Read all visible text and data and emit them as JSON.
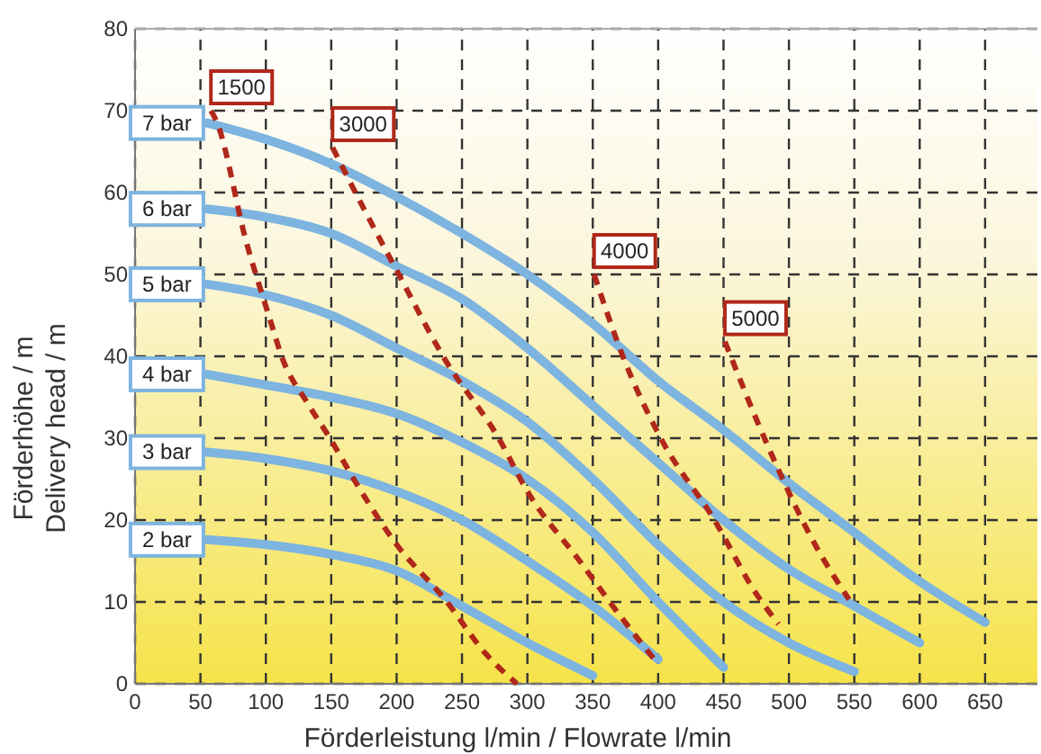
{
  "chart_data": {
    "type": "line",
    "xlabel": "Förderleistung l/min / Flowrate l/min",
    "ylabel": "Förderhöhe / m\nDelivery head / m",
    "xlim": [
      0,
      690
    ],
    "ylim": [
      0,
      80
    ],
    "xticks": [
      0,
      50,
      100,
      150,
      200,
      250,
      300,
      350,
      400,
      450,
      500,
      550,
      600,
      650
    ],
    "yticks": [
      0,
      10,
      20,
      30,
      40,
      50,
      60,
      70,
      80
    ],
    "grid": true,
    "series": [
      {
        "name": "7 bar",
        "color": "#7db4e0",
        "line_style": "solid",
        "x": [
          55,
          100,
          150,
          200,
          250,
          300,
          350,
          400,
          450,
          500,
          550,
          600,
          650
        ],
        "values": [
          68.5,
          66.5,
          63.5,
          59.5,
          55,
          50,
          44,
          37,
          31,
          24.5,
          18.5,
          12.5,
          7.5
        ]
      },
      {
        "name": "6 bar",
        "color": "#7db4e0",
        "line_style": "solid",
        "x": [
          55,
          100,
          150,
          200,
          250,
          300,
          350,
          400,
          450,
          500,
          550,
          600
        ],
        "values": [
          58,
          57,
          55,
          51,
          47,
          41,
          34,
          27,
          20,
          14,
          9.5,
          5
        ]
      },
      {
        "name": "5 bar",
        "color": "#7db4e0",
        "line_style": "solid",
        "x": [
          55,
          100,
          150,
          200,
          250,
          300,
          350,
          400,
          450,
          500,
          550
        ],
        "values": [
          48.8,
          47.5,
          45,
          41,
          37,
          32,
          25,
          17,
          10,
          5,
          1.5
        ]
      },
      {
        "name": "4 bar",
        "color": "#7db4e0",
        "line_style": "solid",
        "x": [
          55,
          100,
          150,
          200,
          250,
          300,
          350,
          400,
          450
        ],
        "values": [
          37.8,
          36.5,
          35,
          33,
          29.5,
          25,
          18.5,
          10,
          2
        ]
      },
      {
        "name": "3 bar",
        "color": "#7db4e0",
        "line_style": "solid",
        "x": [
          55,
          100,
          150,
          200,
          250,
          300,
          350,
          400
        ],
        "values": [
          28.3,
          27.5,
          26,
          23.5,
          20,
          15,
          9.5,
          3
        ]
      },
      {
        "name": "2 bar",
        "color": "#7db4e0",
        "line_style": "solid",
        "x": [
          55,
          100,
          150,
          200,
          250,
          300,
          350
        ],
        "values": [
          17.6,
          17,
          15.8,
          13.8,
          9.5,
          5,
          1
        ]
      },
      {
        "name": "1500",
        "color": "#b0281a",
        "line_style": "dashed",
        "x": [
          58,
          62,
          85,
          103,
          113,
          131,
          149,
          168,
          200,
          237,
          268,
          292
        ],
        "values": [
          70,
          68.8,
          54,
          44.6,
          39.6,
          34.5,
          30,
          24.8,
          17,
          10.3,
          3.7,
          0
        ]
      },
      {
        "name": "3000",
        "color": "#b0281a",
        "line_style": "dashed",
        "x": [
          151,
          175,
          200,
          237,
          278,
          300,
          340,
          370,
          397
        ],
        "values": [
          65.5,
          58,
          50.5,
          39.6,
          30,
          23.5,
          15,
          8.5,
          3
        ]
      },
      {
        "name": "4000",
        "color": "#b0281a",
        "line_style": "dashed",
        "x": [
          351,
          374,
          402,
          443,
          475,
          492
        ],
        "values": [
          50,
          39.6,
          30,
          20,
          11,
          7.3
        ]
      },
      {
        "name": "5000",
        "color": "#b0281a",
        "line_style": "dashed",
        "x": [
          451,
          484,
          520,
          546
        ],
        "values": [
          41.8,
          29,
          17,
          10.3
        ]
      }
    ]
  }
}
